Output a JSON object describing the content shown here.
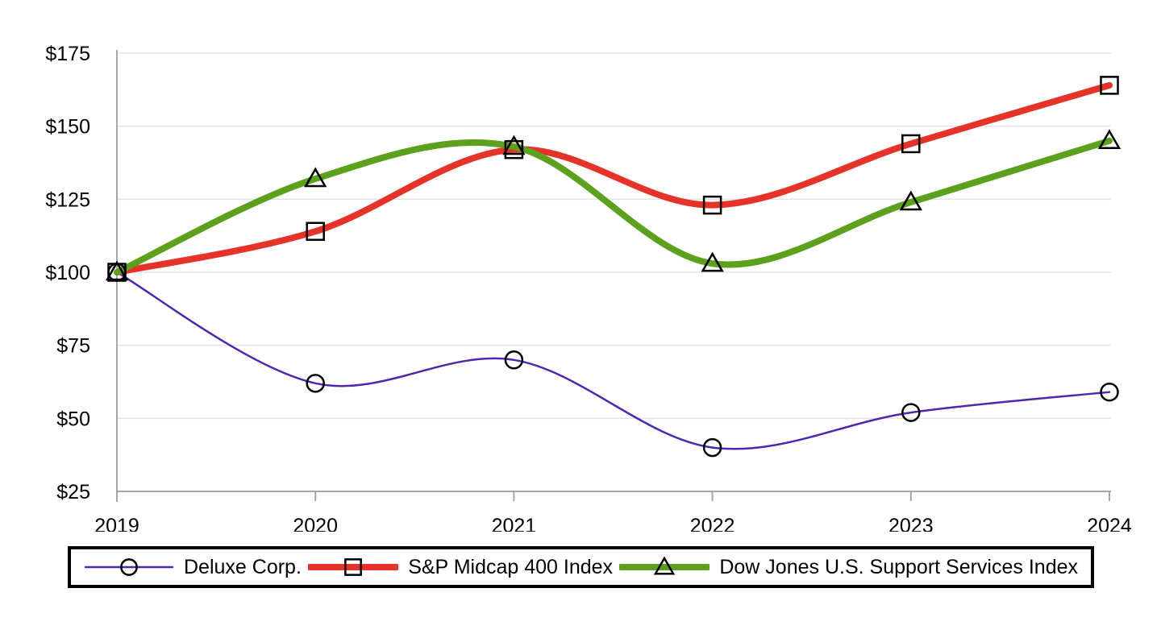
{
  "chart_data": {
    "type": "line",
    "title": "",
    "categories": [
      "2019",
      "2020",
      "2021",
      "2022",
      "2023",
      "2024"
    ],
    "series": [
      {
        "name": "Deluxe Corp.",
        "values": [
          100,
          62,
          70,
          40,
          52,
          59
        ],
        "color": "#4f27ae",
        "marker": "circle",
        "line_width": 2.5
      },
      {
        "name": "S&P Midcap 400 Index",
        "values": [
          100,
          114,
          142,
          123,
          144,
          164
        ],
        "color": "#e63329",
        "marker": "square",
        "line_width": 8
      },
      {
        "name": "Dow Jones U.S. Support Services Index",
        "values": [
          100,
          132,
          143,
          103,
          124,
          145
        ],
        "color": "#5da01d",
        "marker": "triangle",
        "line_width": 8
      }
    ],
    "y_ticks": [
      25,
      50,
      75,
      100,
      125,
      150,
      175
    ],
    "y_tick_labels": [
      "$25",
      "$50",
      "$75",
      "$100",
      "$125",
      "$150",
      "$175"
    ],
    "ylim": [
      25,
      175
    ],
    "grid": "horizontal",
    "legend_position": "bottom",
    "axis_color": "#a6a6a6",
    "grid_color": "#e3e3e3",
    "marker_stroke": "#000000",
    "smoothing": "spline"
  }
}
